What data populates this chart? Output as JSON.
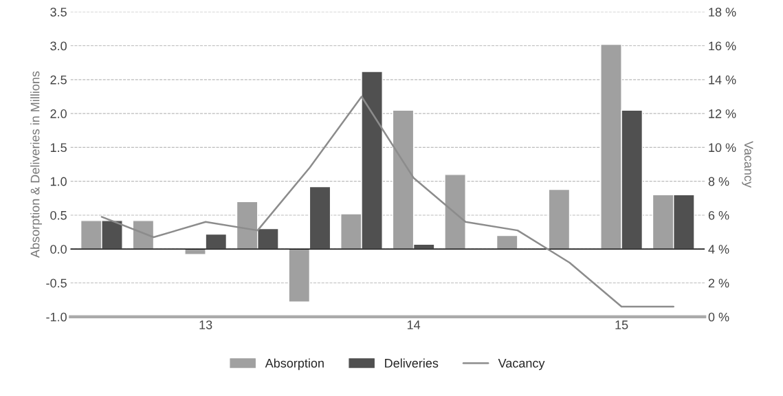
{
  "chart_data": {
    "type": "bar",
    "categories": [
      null,
      null,
      "13",
      null,
      null,
      null,
      "14",
      null,
      null,
      null,
      "15",
      null
    ],
    "ylabel": "Absorption & Deliveries in Millions",
    "y2label": "Vacancy",
    "series": [
      {
        "name": "Absorption",
        "color": "#a0a0a0",
        "values": [
          0.42,
          0.42,
          -0.08,
          0.7,
          -0.78,
          0.52,
          2.05,
          1.1,
          0.2,
          0.88,
          3.02,
          0.8
        ]
      },
      {
        "name": "Deliveries",
        "color": "#505050",
        "values": [
          0.42,
          null,
          0.22,
          0.3,
          0.92,
          2.62,
          0.07,
          null,
          null,
          null,
          2.05,
          0.8
        ]
      },
      {
        "name": "Vacancy",
        "type": "line",
        "axis": "y2",
        "color": "#8c8c8c",
        "values": [
          5.9,
          4.7,
          5.6,
          5.1,
          8.8,
          13.0,
          8.2,
          5.6,
          5.1,
          3.2,
          0.6,
          0.6
        ]
      }
    ],
    "ylim": [
      -1.0,
      3.5
    ],
    "yticks": [
      {
        "value": -1.0,
        "label": "-1.0"
      },
      {
        "value": -0.5,
        "label": "-0.5"
      },
      {
        "value": 0.0,
        "label": "0.0"
      },
      {
        "value": 0.5,
        "label": "0.5"
      },
      {
        "value": 1.0,
        "label": "1.0"
      },
      {
        "value": 1.5,
        "label": "1.5"
      },
      {
        "value": 2.0,
        "label": "2.0"
      },
      {
        "value": 2.5,
        "label": "2.5"
      },
      {
        "value": 3.0,
        "label": "3.0"
      },
      {
        "value": 3.5,
        "label": "3.5"
      }
    ],
    "y2lim": [
      0,
      18
    ],
    "y2ticks": [
      {
        "value": 0,
        "label": "0 %"
      },
      {
        "value": 2,
        "label": "2 %"
      },
      {
        "value": 4,
        "label": "4 %"
      },
      {
        "value": 6,
        "label": "6 %"
      },
      {
        "value": 8,
        "label": "8 %"
      },
      {
        "value": 10,
        "label": "10 %"
      },
      {
        "value": 12,
        "label": "12 %"
      },
      {
        "value": 14,
        "label": "14 %"
      },
      {
        "value": 16,
        "label": "16 %"
      },
      {
        "value": 18,
        "label": "18 %"
      }
    ],
    "ref_lines": [
      {
        "axis": "y",
        "value": 0,
        "color": "#000000"
      }
    ],
    "grid": "y",
    "legend": "bottom",
    "marker": "none",
    "line_style": "solid"
  }
}
